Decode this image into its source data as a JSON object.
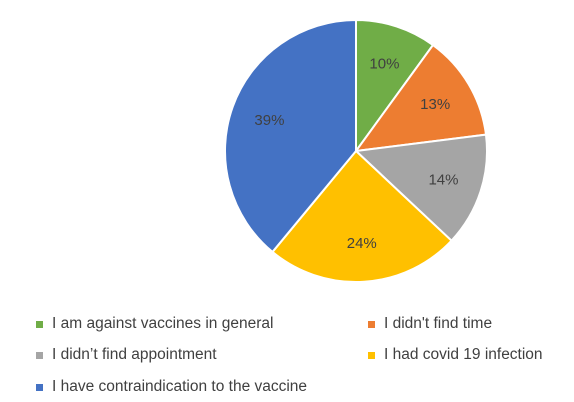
{
  "chart_data": {
    "type": "pie",
    "categories": [
      "I am against vaccines in general",
      "I didn't find time",
      "I didn’t find appointment",
      "I had covid 19 infection",
      "I have contraindication to the vaccine"
    ],
    "values": [
      10,
      13,
      14,
      24,
      39
    ],
    "data_labels": [
      "10%",
      "13%",
      "14%",
      "24%",
      "39%"
    ],
    "colors": [
      "#70AD47",
      "#ED7D31",
      "#A5A5A5",
      "#FFC000",
      "#4472C4"
    ],
    "start_angle_deg": 0,
    "direction": "clockwise",
    "legend_position": "bottom"
  }
}
